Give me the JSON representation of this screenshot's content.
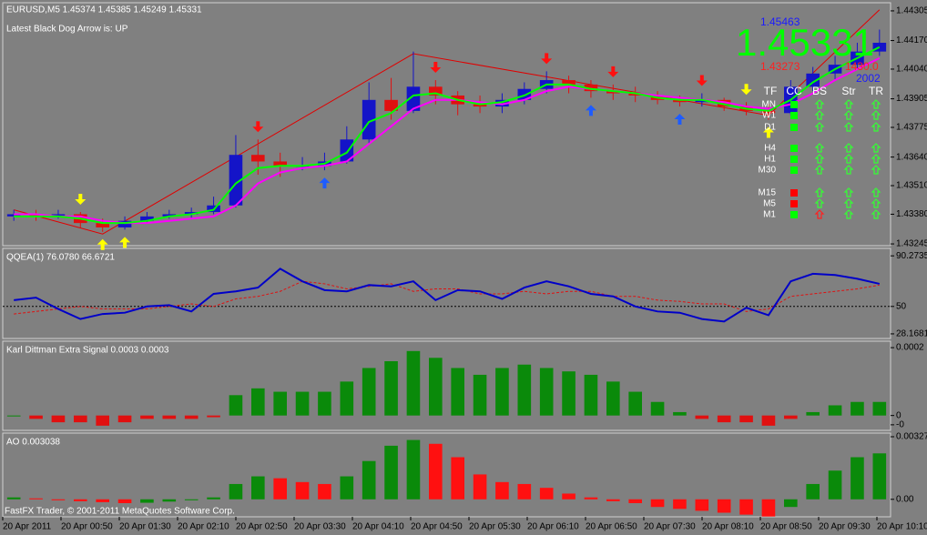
{
  "header": {
    "symbol": "EURUSD,M5  1.45374 1.45385 1.45249 1.45331",
    "note": "Latest Black Dog Arrow is:  UP",
    "bid_big": "1.45331",
    "high_label": "1.45463",
    "low_label": "1.43273",
    "range_label": "1430.0",
    "spread_label": "2002",
    "footer": "FastFX Trader, © 2001-2011 MetaQuotes Software Corp."
  },
  "price_panel": {
    "ylim": [
      1.43237,
      1.44342
    ],
    "yticks": [
      1.44305,
      {
        "value": 1.4417,
        "label": "1.44170"
      },
      {
        "value": 1.4404,
        "label": "1.44040"
      },
      1.43905,
      1.43775,
      {
        "value": 1.4364,
        "label": "1.43640"
      },
      {
        "value": 1.4351,
        "label": "1.43510"
      },
      {
        "value": 1.4338,
        "label": "1.43380"
      },
      1.43245
    ],
    "bull_color": "#1414c8",
    "bear_color": "#e01010",
    "candles": [
      [
        1.4337,
        1.434,
        1.4335,
        1.4338
      ],
      [
        1.4338,
        1.434,
        1.4335,
        1.4337
      ],
      [
        1.4337,
        1.434,
        1.4336,
        1.4338
      ],
      [
        1.4338,
        1.4339,
        1.4332,
        1.4334
      ],
      [
        1.4334,
        1.4336,
        1.433,
        1.4332
      ],
      [
        1.4332,
        1.4337,
        1.4331,
        1.4335
      ],
      [
        1.4335,
        1.4339,
        1.4334,
        1.4337
      ],
      [
        1.4337,
        1.434,
        1.4336,
        1.4338
      ],
      [
        1.4338,
        1.4341,
        1.4336,
        1.4339
      ],
      [
        1.4339,
        1.4346,
        1.4338,
        1.4342
      ],
      [
        1.4342,
        1.4374,
        1.4341,
        1.4365
      ],
      [
        1.4365,
        1.4372,
        1.4356,
        1.4362
      ],
      [
        1.4362,
        1.4366,
        1.4355,
        1.436
      ],
      [
        1.436,
        1.4364,
        1.4358,
        1.436
      ],
      [
        1.436,
        1.4366,
        1.4358,
        1.4362
      ],
      [
        1.4362,
        1.4378,
        1.4361,
        1.4372
      ],
      [
        1.4372,
        1.4398,
        1.437,
        1.439
      ],
      [
        1.439,
        1.44,
        1.4381,
        1.4385
      ],
      [
        1.4385,
        1.4412,
        1.4384,
        1.4396
      ],
      [
        1.4396,
        1.4399,
        1.4388,
        1.4392
      ],
      [
        1.4392,
        1.4394,
        1.4383,
        1.4388
      ],
      [
        1.4388,
        1.4392,
        1.4384,
        1.4387
      ],
      [
        1.4387,
        1.4393,
        1.4384,
        1.439
      ],
      [
        1.439,
        1.4398,
        1.4388,
        1.4395
      ],
      [
        1.4395,
        1.4403,
        1.4393,
        1.4399
      ],
      [
        1.4399,
        1.4401,
        1.4393,
        1.4397
      ],
      [
        1.4397,
        1.4399,
        1.4391,
        1.4394
      ],
      [
        1.4394,
        1.4397,
        1.439,
        1.4393
      ],
      [
        1.4393,
        1.4396,
        1.4389,
        1.4392
      ],
      [
        1.4392,
        1.4394,
        1.4388,
        1.439
      ],
      [
        1.439,
        1.4392,
        1.4387,
        1.4389
      ],
      [
        1.4389,
        1.4393,
        1.4387,
        1.439
      ],
      [
        1.439,
        1.4391,
        1.4385,
        1.4387
      ],
      [
        1.4387,
        1.4389,
        1.4383,
        1.4385
      ],
      [
        1.4385,
        1.4388,
        1.4381,
        1.4384
      ],
      [
        1.4384,
        1.4399,
        1.4383,
        1.4396
      ],
      [
        1.4396,
        1.4405,
        1.4394,
        1.4402
      ],
      [
        1.4402,
        1.441,
        1.4399,
        1.4406
      ],
      [
        1.4406,
        1.4416,
        1.4404,
        1.4412
      ],
      [
        1.4412,
        1.4422,
        1.441,
        1.4416
      ]
    ],
    "ma_fast": {
      "color": "#00ff00",
      "values": [
        1.4337,
        1.4337,
        1.4337,
        1.4336,
        1.4334,
        1.4334,
        1.4335,
        1.4337,
        1.4338,
        1.434,
        1.4352,
        1.4359,
        1.436,
        1.436,
        1.4361,
        1.4366,
        1.438,
        1.4384,
        1.4392,
        1.4393,
        1.439,
        1.4388,
        1.4389,
        1.4392,
        1.4397,
        1.4397,
        1.4395,
        1.4394,
        1.4393,
        1.4391,
        1.439,
        1.439,
        1.4388,
        1.4386,
        1.4385,
        1.439,
        1.4398,
        1.4404,
        1.4409,
        1.4414
      ]
    },
    "ma_slow": {
      "color": "#ff00ff",
      "values": [
        1.4338,
        1.4338,
        1.4337,
        1.4337,
        1.4335,
        1.4334,
        1.4334,
        1.4335,
        1.4336,
        1.4337,
        1.4342,
        1.4352,
        1.4357,
        1.4359,
        1.436,
        1.4362,
        1.437,
        1.4378,
        1.4386,
        1.439,
        1.439,
        1.4389,
        1.4388,
        1.439,
        1.4394,
        1.4396,
        1.4395,
        1.4394,
        1.4393,
        1.4392,
        1.4391,
        1.439,
        1.4389,
        1.4387,
        1.4386,
        1.4388,
        1.4393,
        1.4399,
        1.4404,
        1.4409
      ]
    },
    "zigzag": {
      "color": "#e00000",
      "x": [
        0,
        4,
        18,
        34,
        39
      ],
      "values": [
        1.434,
        1.4329,
        1.4411,
        1.4383,
        1.4431
      ]
    },
    "signal_colors": {
      "yellow": "#ffff00",
      "red": "#ff1010",
      "blue": "#1e5cff"
    },
    "signals": [
      null,
      null,
      null,
      "yellow-down",
      "yellow-up",
      "yellow-up",
      null,
      null,
      null,
      null,
      null,
      "red-down",
      null,
      null,
      "blue-up",
      null,
      null,
      null,
      null,
      "red-down",
      null,
      null,
      null,
      null,
      "red-down",
      null,
      "blue-up",
      "red-down",
      null,
      null,
      "blue-up",
      "red-down",
      null,
      "yellow-down",
      "yellow-up",
      null,
      null,
      null,
      null,
      null
    ]
  },
  "tf_table": {
    "headers": [
      "TF",
      "CC",
      "BS",
      "Str",
      "TR"
    ],
    "rows": [
      {
        "tf": "MN",
        "cc": "#00ff00",
        "arrows": [
          "#33ff33",
          "#33ff33",
          "#33ff33"
        ]
      },
      {
        "tf": "W1",
        "cc": "#00ff00",
        "arrows": [
          "#33ff33",
          "#33ff33",
          "#33ff33"
        ]
      },
      {
        "tf": "D1",
        "cc": "#00ff00",
        "arrows": [
          "#33ff33",
          "#33ff33",
          "#33ff33"
        ]
      },
      {
        "tf": "H4",
        "cc": "#00ff00",
        "arrows": [
          "#33ff33",
          "#33ff33",
          "#33ff33"
        ]
      },
      {
        "tf": "H1",
        "cc": "#00ff00",
        "arrows": [
          "#33ff33",
          "#33ff33",
          "#33ff33"
        ]
      },
      {
        "tf": "M30",
        "cc": "#00ff00",
        "arrows": [
          "#33ff33",
          "#33ff33",
          "#33ff33"
        ]
      },
      {
        "tf": "M15",
        "cc": "#ff0000",
        "arrows": [
          "#33ff33",
          "#33ff33",
          "#33ff33"
        ]
      },
      {
        "tf": "M5",
        "cc": "#ff0000",
        "arrows": [
          "#33ff33",
          "#33ff33",
          "#33ff33"
        ]
      },
      {
        "tf": "M1",
        "cc": "#00ff00",
        "arrows": [
          "#ff2020",
          "#33ff33",
          "#33ff33"
        ]
      }
    ]
  },
  "qqea_panel": {
    "title": "QQEA(1) 76.0780 66.6721",
    "ylim": [
      24.5,
      96.2
    ],
    "yticks": [
      90.2735,
      50,
      28.1681
    ],
    "main": {
      "color": "#0000c8",
      "values": [
        55,
        57,
        48,
        40,
        44,
        45,
        50,
        51,
        46,
        60,
        62,
        65,
        80,
        70,
        63,
        62,
        67,
        66,
        70,
        55,
        63,
        62,
        56,
        65,
        70,
        66,
        60,
        58,
        50,
        46,
        45,
        40,
        38,
        49,
        43,
        70,
        76,
        75,
        72,
        68
      ]
    },
    "signal": {
      "color": "#e01010",
      "values": [
        44,
        46,
        48,
        50,
        48,
        48,
        48,
        50,
        52,
        50,
        56,
        58,
        62,
        70,
        68,
        64,
        66,
        68,
        62,
        64,
        64,
        60,
        60,
        62,
        60,
        62,
        62,
        58,
        58,
        55,
        54,
        52,
        52,
        46,
        48,
        58,
        60,
        62,
        64,
        67
      ]
    }
  },
  "karl_panel": {
    "title": "Karl Dittman Extra Signal 0.0003 0.0003",
    "ylim": [
      -4.38e-05,
      0.000219
    ],
    "yticks": [
      0.0002,
      0,
      {
        "value": -2.74e-05,
        "label": "-0"
      }
    ],
    "up_color": "#0a8a0a",
    "down_color": "#e01010",
    "values": [
      0,
      -1e-05,
      -2e-05,
      -2e-05,
      -3e-05,
      -2e-05,
      -1e-05,
      -1e-05,
      -1e-05,
      -5e-06,
      6e-05,
      8e-05,
      7e-05,
      7e-05,
      7e-05,
      0.0001,
      0.00014,
      0.00016,
      0.00019,
      0.00017,
      0.00014,
      0.00012,
      0.00014,
      0.00015,
      0.00014,
      0.00013,
      0.00012,
      0.0001,
      7e-05,
      4e-05,
      1e-05,
      -1e-05,
      -2e-05,
      -2e-05,
      -3e-05,
      -1e-05,
      1e-05,
      3e-05,
      4e-05,
      4e-05
    ]
  },
  "ao_panel": {
    "title": "AO 0.003038",
    "ylim": [
      -0.000914,
      0.00346
    ],
    "yticks": [
      0.00327,
      {
        "value": 0,
        "label": "0.00"
      }
    ],
    "up_color": "#0a8a0a",
    "down_color": "#ff1010",
    "values": [
      0.0001,
      5e-05,
      -5e-05,
      -0.0001,
      -0.00015,
      -0.0002,
      -0.00018,
      -0.00012,
      -5e-05,
      0.0001,
      0.0008,
      0.0012,
      0.0011,
      0.0009,
      0.0008,
      0.0012,
      0.002,
      0.0028,
      0.0031,
      0.0029,
      0.0022,
      0.0013,
      0.0009,
      0.0008,
      0.0006,
      0.0003,
      0.0001,
      -0.0001,
      -0.0002,
      -0.0004,
      -0.0005,
      -0.0006,
      -0.0007,
      -0.0008,
      -0.0009,
      -0.0004,
      0.0008,
      0.0015,
      0.0022,
      0.0024
    ]
  },
  "time_labels": [
    "20 Apr 2011",
    "20 Apr 00:50",
    "20 Apr 01:30",
    "20 Apr 02:10",
    "20 Apr 02:50",
    "20 Apr 03:30",
    "20 Apr 04:10",
    "20 Apr 04:50",
    "20 Apr 05:30",
    "20 Apr 06:10",
    "20 Apr 06:50",
    "20 Apr 07:30",
    "20 Apr 08:10",
    "20 Apr 08:50",
    "20 Apr 09:30",
    "20 Apr 10:10"
  ]
}
